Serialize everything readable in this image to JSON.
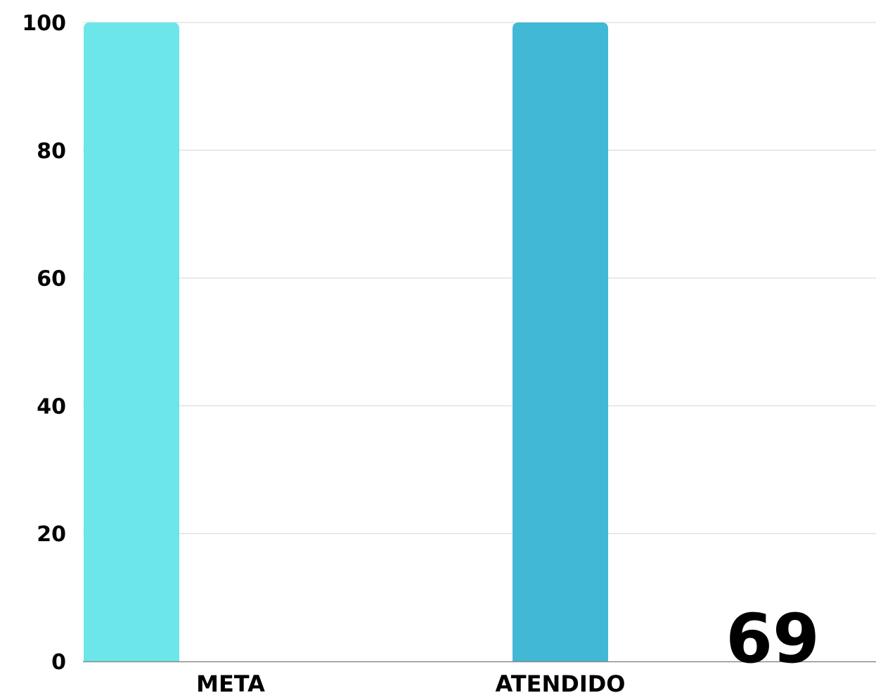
{
  "chart_data": {
    "type": "bar",
    "categories": [
      "META",
      "ATENDIDO"
    ],
    "values": [
      100,
      100
    ],
    "colors": [
      "#6ce6e8",
      "#41b8d5"
    ],
    "ylim": [
      0,
      100
    ],
    "yticks": [
      0,
      20,
      40,
      60,
      80,
      100
    ],
    "grid": true,
    "legend": "none",
    "annotation": "69"
  }
}
